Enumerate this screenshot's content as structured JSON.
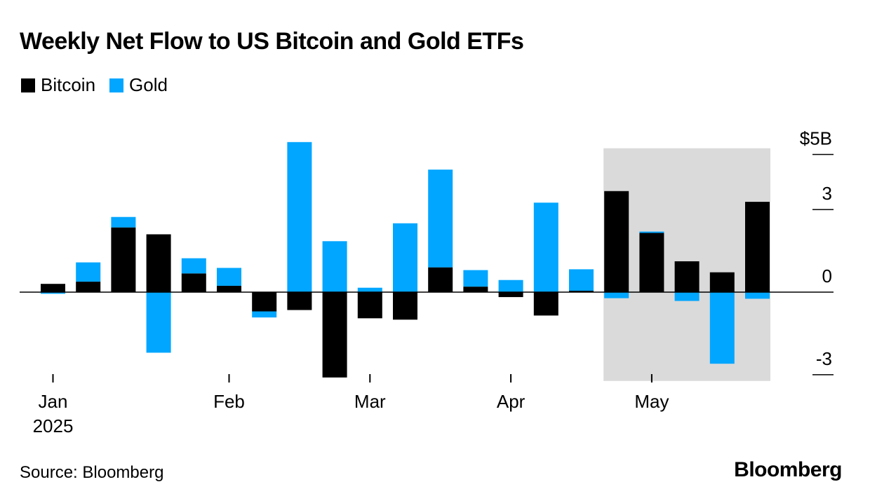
{
  "chart_data": {
    "type": "bar",
    "stacked": true,
    "title": "Weekly Net Flow to US Bitcoin and Gold ETFs",
    "unit": "$B",
    "ylim": [
      -3.2,
      5.2
    ],
    "y_ticks": [
      {
        "value": 5,
        "label": "$5B"
      },
      {
        "value": 3,
        "label": "3"
      },
      {
        "value": 0,
        "label": "0"
      },
      {
        "value": -3,
        "label": "-3"
      }
    ],
    "x_labels": [
      {
        "index": 0,
        "label": "Jan",
        "sub": "2025"
      },
      {
        "index": 5,
        "label": "Feb",
        "sub": ""
      },
      {
        "index": 9,
        "label": "Mar",
        "sub": ""
      },
      {
        "index": 13,
        "label": "Apr",
        "sub": ""
      },
      {
        "index": 17,
        "label": "May",
        "sub": ""
      }
    ],
    "shaded_region": {
      "from_index": 16,
      "to_index": 20
    },
    "grid": false,
    "legend_position": "top-left",
    "series": [
      {
        "name": "Bitcoin",
        "color": "#000000",
        "values": [
          0.3,
          0.38,
          2.35,
          2.1,
          0.68,
          0.23,
          -0.7,
          -0.65,
          -3.1,
          -0.95,
          -1.0,
          0.9,
          0.2,
          -0.18,
          -0.85,
          0.05,
          3.67,
          2.15,
          1.12,
          0.72,
          3.28
        ]
      },
      {
        "name": "Gold",
        "color": "#00a6ff",
        "values": [
          -0.06,
          0.7,
          0.38,
          -2.2,
          0.55,
          0.65,
          -0.22,
          5.45,
          1.85,
          0.16,
          2.5,
          3.55,
          0.6,
          0.44,
          3.25,
          0.78,
          -0.22,
          0.05,
          -0.32,
          -2.6,
          -0.24
        ]
      }
    ]
  },
  "source": "Source: Bloomberg",
  "brand": "Bloomberg"
}
